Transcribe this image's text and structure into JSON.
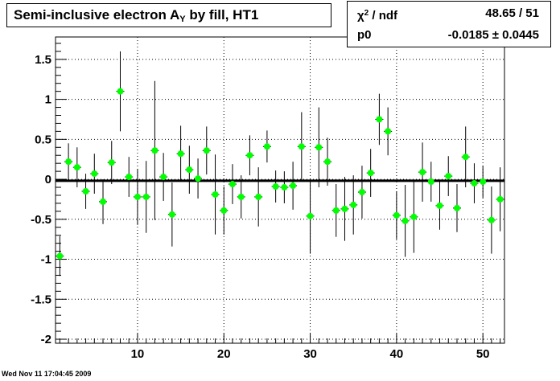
{
  "title": {
    "main": "Semi-inclusive electron A",
    "subscript": "Y",
    "suffix": " by fill, HT1"
  },
  "stats": {
    "row1_label_chi": "χ",
    "row1_label_sup": "2",
    "row1_label_rest": " / ndf",
    "row1_value": "48.65 / 51",
    "row2_label": "p0",
    "row2_value": "-0.0185 ± 0.0445"
  },
  "timestamp": "Wed Nov 11 17:04:45 2009",
  "colors": {
    "marker": "#00ff00",
    "fit_line": "#000000",
    "grid": "#000000"
  },
  "chart_data": {
    "type": "scatter",
    "xlim": [
      0.5,
      52.5
    ],
    "ylim": [
      -2.05,
      1.78
    ],
    "x_ticks": [
      10,
      20,
      30,
      40,
      50
    ],
    "y_ticks": [
      -2,
      -1.5,
      -1,
      -0.5,
      0,
      0.5,
      1,
      1.5
    ],
    "y_tick_labels": [
      "-2",
      "-1.5",
      "-1",
      "-0.5",
      "0",
      "0.5",
      "1",
      "1.5"
    ],
    "grid": true,
    "fit_value": -0.0185,
    "points": [
      {
        "x": 1,
        "y": -0.96,
        "err": 0.25
      },
      {
        "x": 2,
        "y": 0.22,
        "err": 0.23
      },
      {
        "x": 3,
        "y": 0.15,
        "err": 0.25
      },
      {
        "x": 4,
        "y": -0.15,
        "err": 0.22
      },
      {
        "x": 5,
        "y": 0.07,
        "err": 0.25
      },
      {
        "x": 6,
        "y": -0.28,
        "err": 0.28
      },
      {
        "x": 7,
        "y": 0.21,
        "err": 0.27
      },
      {
        "x": 8,
        "y": 1.1,
        "err": 0.5
      },
      {
        "x": 9,
        "y": 0.03,
        "err": 0.25
      },
      {
        "x": 10,
        "y": -0.22,
        "err": 0.35
      },
      {
        "x": 11,
        "y": -0.22,
        "err": 0.45
      },
      {
        "x": 12,
        "y": 0.36,
        "err": 0.87
      },
      {
        "x": 13,
        "y": 0.03,
        "err": 0.3
      },
      {
        "x": 14,
        "y": -0.44,
        "err": 0.4
      },
      {
        "x": 15,
        "y": 0.32,
        "err": 0.35
      },
      {
        "x": 16,
        "y": 0.12,
        "err": 0.3
      },
      {
        "x": 17,
        "y": 0.01,
        "err": 0.25
      },
      {
        "x": 18,
        "y": 0.36,
        "err": 0.3
      },
      {
        "x": 19,
        "y": -0.19,
        "err": 0.5
      },
      {
        "x": 20,
        "y": -0.39,
        "err": 0.3
      },
      {
        "x": 21,
        "y": -0.06,
        "err": 0.25
      },
      {
        "x": 22,
        "y": -0.22,
        "err": 0.27
      },
      {
        "x": 23,
        "y": 0.3,
        "err": 0.25
      },
      {
        "x": 24,
        "y": -0.22,
        "err": 0.37
      },
      {
        "x": 25,
        "y": 0.41,
        "err": 0.2
      },
      {
        "x": 26,
        "y": -0.09,
        "err": 0.2
      },
      {
        "x": 27,
        "y": -0.1,
        "err": 0.2
      },
      {
        "x": 28,
        "y": -0.08,
        "err": 0.3
      },
      {
        "x": 29,
        "y": 0.41,
        "err": 0.43
      },
      {
        "x": 30,
        "y": -0.46,
        "err": 0.47
      },
      {
        "x": 31,
        "y": 0.4,
        "err": 0.5
      },
      {
        "x": 32,
        "y": 0.22,
        "err": 0.3
      },
      {
        "x": 33,
        "y": -0.39,
        "err": 0.33
      },
      {
        "x": 34,
        "y": -0.37,
        "err": 0.4
      },
      {
        "x": 35,
        "y": -0.32,
        "err": 0.37
      },
      {
        "x": 36,
        "y": -0.16,
        "err": 0.33
      },
      {
        "x": 37,
        "y": 0.08,
        "err": 0.3
      },
      {
        "x": 38,
        "y": 0.75,
        "err": 0.32
      },
      {
        "x": 39,
        "y": 0.6,
        "err": 0.3
      },
      {
        "x": 40,
        "y": -0.45,
        "err": 0.3
      },
      {
        "x": 41,
        "y": -0.52,
        "err": 0.45
      },
      {
        "x": 42,
        "y": -0.47,
        "err": 0.45
      },
      {
        "x": 43,
        "y": 0.09,
        "err": 0.37
      },
      {
        "x": 44,
        "y": -0.03,
        "err": 0.25
      },
      {
        "x": 45,
        "y": -0.33,
        "err": 0.3
      },
      {
        "x": 46,
        "y": 0.04,
        "err": 0.25
      },
      {
        "x": 47,
        "y": -0.36,
        "err": 0.3
      },
      {
        "x": 48,
        "y": 0.28,
        "err": 0.38
      },
      {
        "x": 49,
        "y": -0.05,
        "err": 0.25
      },
      {
        "x": 50,
        "y": -0.03,
        "err": 0.2
      },
      {
        "x": 51,
        "y": -0.51,
        "err": 0.42
      },
      {
        "x": 52,
        "y": -0.25,
        "err": 0.4
      }
    ]
  }
}
